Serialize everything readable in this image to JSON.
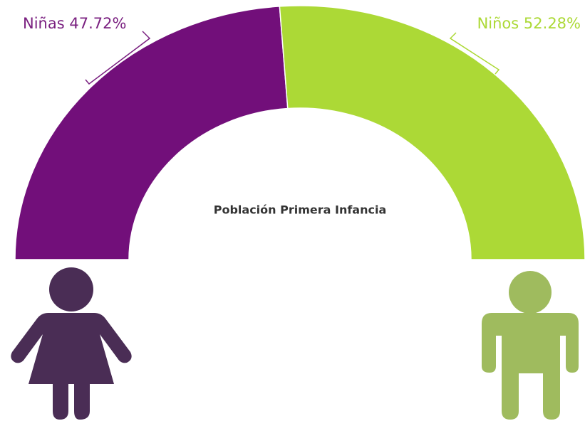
{
  "chart_data": {
    "type": "semi-donut",
    "title": "Población Primera Infancia",
    "categories": [
      "Niñas",
      "Niños"
    ],
    "values": [
      47.72,
      52.28
    ],
    "value_labels": [
      "47.72%",
      "52.28%"
    ],
    "colors": [
      "#720f7a",
      "#acd936"
    ]
  }
}
